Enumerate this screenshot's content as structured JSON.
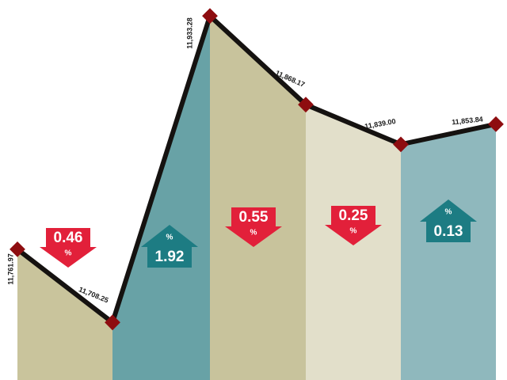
{
  "chart_data": {
    "type": "line",
    "values": [
      11761.97,
      11708.25,
      11933.28,
      11868.17,
      11839.0,
      11853.84
    ],
    "value_labels": [
      "11,761.97",
      "11,708.25",
      "11,933.28",
      "11,868.17",
      "11,839.00",
      "11,853.84"
    ],
    "line_color": "#151210",
    "marker_color": "#8e0d10",
    "ylim": [
      11666,
      11945
    ],
    "changes": {
      "values": [
        0.46,
        1.92,
        0.55,
        0.25,
        0.13
      ],
      "direction": [
        "down",
        "up",
        "down",
        "down",
        "up"
      ],
      "unit": "%",
      "colors": [
        "#c9c49c",
        "#68a2a6",
        "#c8c39c",
        "#e2dfca",
        "#8fb8bd"
      ],
      "arrow_colors": {
        "up": "#1d7c83",
        "down": "#e2203a"
      }
    }
  }
}
